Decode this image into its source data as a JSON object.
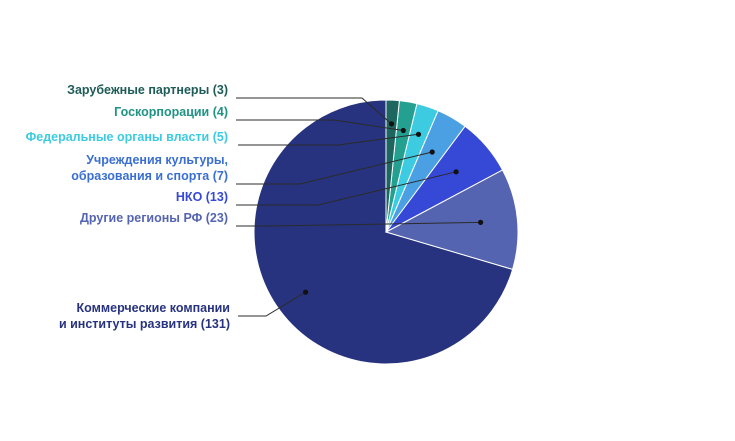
{
  "chart_data": {
    "type": "pie",
    "start": "top",
    "direction": "counterclockwise",
    "title": "",
    "slices": [
      {
        "label_lines": [
          "Коммерческие компании",
          "и институты развития (131)"
        ],
        "value": 131,
        "color": "#27337e",
        "label_color": "#27337e"
      },
      {
        "label_lines": [
          "Другие регионы РФ (23)"
        ],
        "value": 23,
        "color": "#5564b0",
        "label_color": "#5564b0"
      },
      {
        "label_lines": [
          "НКО (13)"
        ],
        "value": 13,
        "color": "#3648d6",
        "label_color": "#3648d6"
      },
      {
        "label_lines": [
          "Учреждения культуры,",
          "образования и спорта (7)"
        ],
        "value": 7,
        "color": "#4aa0e2",
        "label_color": "#3a6fd1"
      },
      {
        "label_lines": [
          "Федеральные органы власти (5)"
        ],
        "value": 5,
        "color": "#3ccbe0",
        "label_color": "#3ccbe0"
      },
      {
        "label_lines": [
          "Госкорпорации (4)"
        ],
        "value": 4,
        "color": "#23a090",
        "label_color": "#1f9384"
      },
      {
        "label_lines": [
          "Зарубежные партнеры (3)"
        ],
        "value": 3,
        "color": "#1e6660",
        "label_color": "#1e5c57"
      }
    ]
  }
}
